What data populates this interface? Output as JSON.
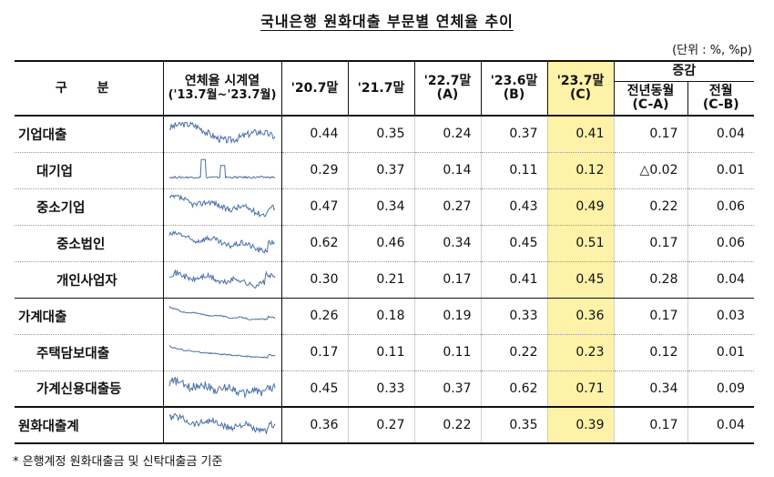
{
  "title": "국내은행 원화대출 부문별 연체율 추이",
  "unit": "(단위 : %, %p)",
  "headers": {
    "category": "구 분",
    "series_line1": "연체율 시계열",
    "series_line2": "('13.7월~'23.7월)",
    "col1": "'20.7말",
    "col2": "'21.7말",
    "col3_line1": "'22.7말",
    "col3_line2": "(A)",
    "col4_line1": "'23.6말",
    "col4_line2": "(B)",
    "col5_line1": "'23.7말",
    "col5_line2": "(C)",
    "change": "증감",
    "yoy_line1": "전년동월",
    "yoy_line2": "(C-A)",
    "mom_line1": "전월",
    "mom_line2": "(C-B)"
  },
  "rows": [
    {
      "label": "기업대출",
      "v1": "0.44",
      "v2": "0.35",
      "v3": "0.24",
      "v4": "0.37",
      "v5": "0.41",
      "yoy": "0.17",
      "mom": "0.04"
    },
    {
      "label": "대기업",
      "v1": "0.29",
      "v2": "0.37",
      "v3": "0.14",
      "v4": "0.11",
      "v5": "0.12",
      "yoy": "△0.02",
      "mom": "0.01"
    },
    {
      "label": "중소기업",
      "v1": "0.47",
      "v2": "0.34",
      "v3": "0.27",
      "v4": "0.43",
      "v5": "0.49",
      "yoy": "0.22",
      "mom": "0.06"
    },
    {
      "label": "중소법인",
      "v1": "0.62",
      "v2": "0.46",
      "v3": "0.34",
      "v4": "0.45",
      "v5": "0.51",
      "yoy": "0.17",
      "mom": "0.06"
    },
    {
      "label": "개인사업자",
      "v1": "0.30",
      "v2": "0.21",
      "v3": "0.17",
      "v4": "0.41",
      "v5": "0.45",
      "yoy": "0.28",
      "mom": "0.04"
    },
    {
      "label": "가계대출",
      "v1": "0.26",
      "v2": "0.18",
      "v3": "0.19",
      "v4": "0.33",
      "v5": "0.36",
      "yoy": "0.17",
      "mom": "0.03"
    },
    {
      "label": "주택담보대출",
      "v1": "0.17",
      "v2": "0.11",
      "v3": "0.11",
      "v4": "0.22",
      "v5": "0.23",
      "yoy": "0.12",
      "mom": "0.01"
    },
    {
      "label": "가계신용대출등",
      "v1": "0.45",
      "v2": "0.33",
      "v3": "0.37",
      "v4": "0.62",
      "v5": "0.71",
      "yoy": "0.34",
      "mom": "0.09"
    },
    {
      "label": "원화대출계",
      "v1": "0.36",
      "v2": "0.27",
      "v3": "0.22",
      "v4": "0.35",
      "v5": "0.39",
      "yoy": "0.17",
      "mom": "0.04"
    }
  ],
  "note": "* 은행계정 원화대출금 및 신탁대출금 기준",
  "colors": {
    "highlight": "#fdf2a8",
    "sparkline": "#4a6fa5"
  }
}
